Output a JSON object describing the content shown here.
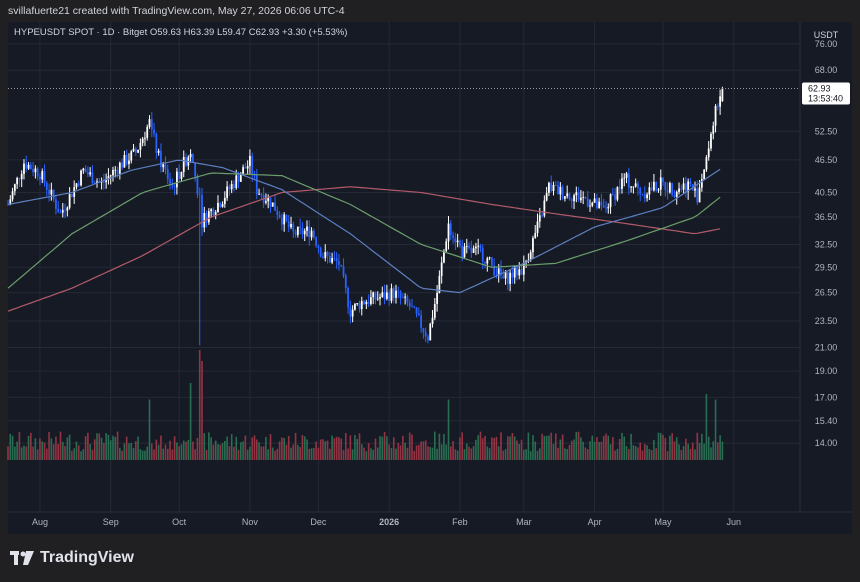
{
  "header": {
    "attribution": "svillafuerte21 created with TradingView.com, May 27, 2026 06:06 UTC-4"
  },
  "legend": {
    "symbol": "HYPEUSDT SPOT · 1D · Bitget",
    "open_label": "O",
    "open": "59.63",
    "high_label": "H",
    "high": "63.39",
    "low_label": "L",
    "low": "59.47",
    "close_label": "C",
    "close": "62.93",
    "change": "+3.30 (+5.53%)"
  },
  "price_axis": {
    "currency": "USDT",
    "last_price": "62.93",
    "countdown": "13:53:40"
  },
  "footer": {
    "brand": "TradingView"
  },
  "colors": {
    "background": "#161a25",
    "up_candle": "#ffffff",
    "down_candle": "#2962ff",
    "ma_fast": "#5b7fbf",
    "ma_mid": "#6b9e6b",
    "ma_slow": "#b25a6a",
    "volume_up": "#2e7d5b",
    "volume_down": "#a93a4a",
    "grid": "#242936"
  },
  "chart_data": {
    "type": "candlestick",
    "y_scale": "log",
    "ylim": [
      12.5,
      82
    ],
    "y_ticks": [
      "76.00",
      "68.00",
      "62.93",
      "52.50",
      "46.50",
      "40.50",
      "36.50",
      "32.50",
      "29.50",
      "26.50",
      "23.50",
      "21.00",
      "19.00",
      "17.00",
      "15.40",
      "14.00"
    ],
    "x_ticks": [
      "Aug",
      "Sep",
      "Oct",
      "Nov",
      "Dec",
      "2026",
      "Feb",
      "Mar",
      "Apr",
      "May",
      "Jun"
    ],
    "x_tick_dates": [
      "2025-08-01",
      "2025-09-01",
      "2025-10-01",
      "2025-11-01",
      "2025-12-01",
      "2026-01-01",
      "2026-02-01",
      "2026-03-01",
      "2026-04-01",
      "2026-05-01",
      "2026-06-01"
    ],
    "x_range": [
      "2025-07-18",
      "2026-06-30"
    ],
    "grid": true,
    "price_path": [
      [
        "2025-07-18",
        38.5
      ],
      [
        "2025-07-25",
        46.0
      ],
      [
        "2025-08-01",
        44.0
      ],
      [
        "2025-08-10",
        37.0
      ],
      [
        "2025-08-20",
        44.5
      ],
      [
        "2025-08-28",
        42.0
      ],
      [
        "2025-09-05",
        45.5
      ],
      [
        "2025-09-12",
        48.0
      ],
      [
        "2025-09-18",
        54.5
      ],
      [
        "2025-09-22",
        47.0
      ],
      [
        "2025-09-28",
        41.5
      ],
      [
        "2025-10-06",
        48.5
      ],
      [
        "2025-10-10",
        39.0
      ],
      [
        "2025-10-11",
        36.0
      ],
      [
        "2025-10-20",
        39.5
      ],
      [
        "2025-10-28",
        44.0
      ],
      [
        "2025-11-01",
        46.0
      ],
      [
        "2025-11-04",
        41.0
      ],
      [
        "2025-11-10",
        39.0
      ],
      [
        "2025-11-20",
        34.0
      ],
      [
        "2025-11-28",
        34.5
      ],
      [
        "2025-12-03",
        31.0
      ],
      [
        "2025-12-10",
        30.0
      ],
      [
        "2025-12-15",
        24.5
      ],
      [
        "2025-12-20",
        25.5
      ],
      [
        "2025-12-28",
        26.0
      ],
      [
        "2026-01-03",
        26.5
      ],
      [
        "2026-01-10",
        25.0
      ],
      [
        "2026-01-18",
        22.0
      ],
      [
        "2026-01-22",
        26.5
      ],
      [
        "2026-01-27",
        35.5
      ],
      [
        "2026-02-02",
        31.5
      ],
      [
        "2026-02-10",
        31.5
      ],
      [
        "2026-02-20",
        28.0
      ],
      [
        "2026-03-01",
        29.5
      ],
      [
        "2026-03-08",
        36.0
      ],
      [
        "2026-03-12",
        41.5
      ],
      [
        "2026-03-18",
        40.5
      ],
      [
        "2026-03-28",
        39.5
      ],
      [
        "2026-04-05",
        37.5
      ],
      [
        "2026-04-14",
        43.0
      ],
      [
        "2026-04-22",
        40.5
      ],
      [
        "2026-04-30",
        42.0
      ],
      [
        "2026-05-06",
        41.0
      ],
      [
        "2026-05-12",
        42.0
      ],
      [
        "2026-05-16",
        40.0
      ],
      [
        "2026-05-20",
        47.0
      ],
      [
        "2026-05-24",
        58.0
      ],
      [
        "2026-05-27",
        62.93
      ]
    ],
    "ma_fast_path": [
      [
        "2025-07-18",
        38.5
      ],
      [
        "2025-08-15",
        40.5
      ],
      [
        "2025-09-10",
        44.5
      ],
      [
        "2025-10-01",
        46.5
      ],
      [
        "2025-10-20",
        45.0
      ],
      [
        "2025-11-15",
        41.0
      ],
      [
        "2025-12-15",
        34.0
      ],
      [
        "2026-01-15",
        27.0
      ],
      [
        "2026-02-01",
        26.5
      ],
      [
        "2026-03-01",
        30.0
      ],
      [
        "2026-04-01",
        35.0
      ],
      [
        "2026-05-01",
        38.0
      ],
      [
        "2026-05-27",
        45.0
      ]
    ],
    "ma_mid_path": [
      [
        "2025-07-18",
        27.0
      ],
      [
        "2025-08-15",
        34.0
      ],
      [
        "2025-09-15",
        40.5
      ],
      [
        "2025-10-15",
        44.0
      ],
      [
        "2025-11-15",
        43.5
      ],
      [
        "2025-12-15",
        38.5
      ],
      [
        "2026-01-15",
        32.5
      ],
      [
        "2026-02-15",
        29.5
      ],
      [
        "2026-03-15",
        30.0
      ],
      [
        "2026-04-15",
        33.0
      ],
      [
        "2026-05-15",
        36.5
      ],
      [
        "2026-05-27",
        40.0
      ]
    ],
    "ma_slow_path": [
      [
        "2025-07-18",
        24.5
      ],
      [
        "2025-08-15",
        27.0
      ],
      [
        "2025-09-15",
        31.0
      ],
      [
        "2025-10-15",
        36.5
      ],
      [
        "2025-11-15",
        40.5
      ],
      [
        "2025-12-15",
        41.5
      ],
      [
        "2026-01-15",
        40.5
      ],
      [
        "2026-02-15",
        38.5
      ],
      [
        "2026-03-15",
        37.0
      ],
      [
        "2026-04-15",
        35.5
      ],
      [
        "2026-05-15",
        34.0
      ],
      [
        "2026-05-27",
        34.8
      ]
    ],
    "volume_spikes": [
      [
        "2025-09-18",
        0.55
      ],
      [
        "2025-10-06",
        0.7
      ],
      [
        "2025-10-10",
        1.0
      ],
      [
        "2025-10-11",
        0.9
      ],
      [
        "2026-01-27",
        0.55
      ],
      [
        "2026-05-20",
        0.6
      ],
      [
        "2026-05-24",
        0.55
      ]
    ]
  }
}
